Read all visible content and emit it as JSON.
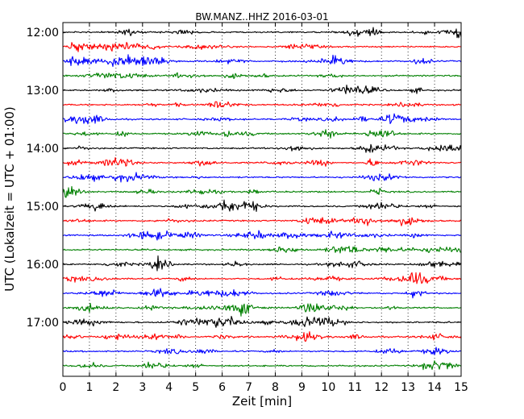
{
  "chart_data": {
    "type": "line",
    "title": "BW.MANZ..HHZ 2016-03-01",
    "xlabel": "Zeit  [min]",
    "ylabel": "UTC (Lokalzeit = UTC + 01:00)",
    "xlim": [
      0,
      15
    ],
    "x_ticks": [
      "0",
      "1",
      "2",
      "3",
      "4",
      "5",
      "6",
      "7",
      "8",
      "9",
      "10",
      "11",
      "12",
      "13",
      "14",
      "15"
    ],
    "y_ticks": [
      "12:00",
      "13:00",
      "14:00",
      "15:00",
      "16:00",
      "17:00"
    ],
    "grid": "vertical-dotted",
    "trace_start": "12:00",
    "trace_interval_min": 15,
    "trace_count": 24,
    "colors": [
      "#000000",
      "#ff0000",
      "#0000ff",
      "#008000"
    ]
  }
}
